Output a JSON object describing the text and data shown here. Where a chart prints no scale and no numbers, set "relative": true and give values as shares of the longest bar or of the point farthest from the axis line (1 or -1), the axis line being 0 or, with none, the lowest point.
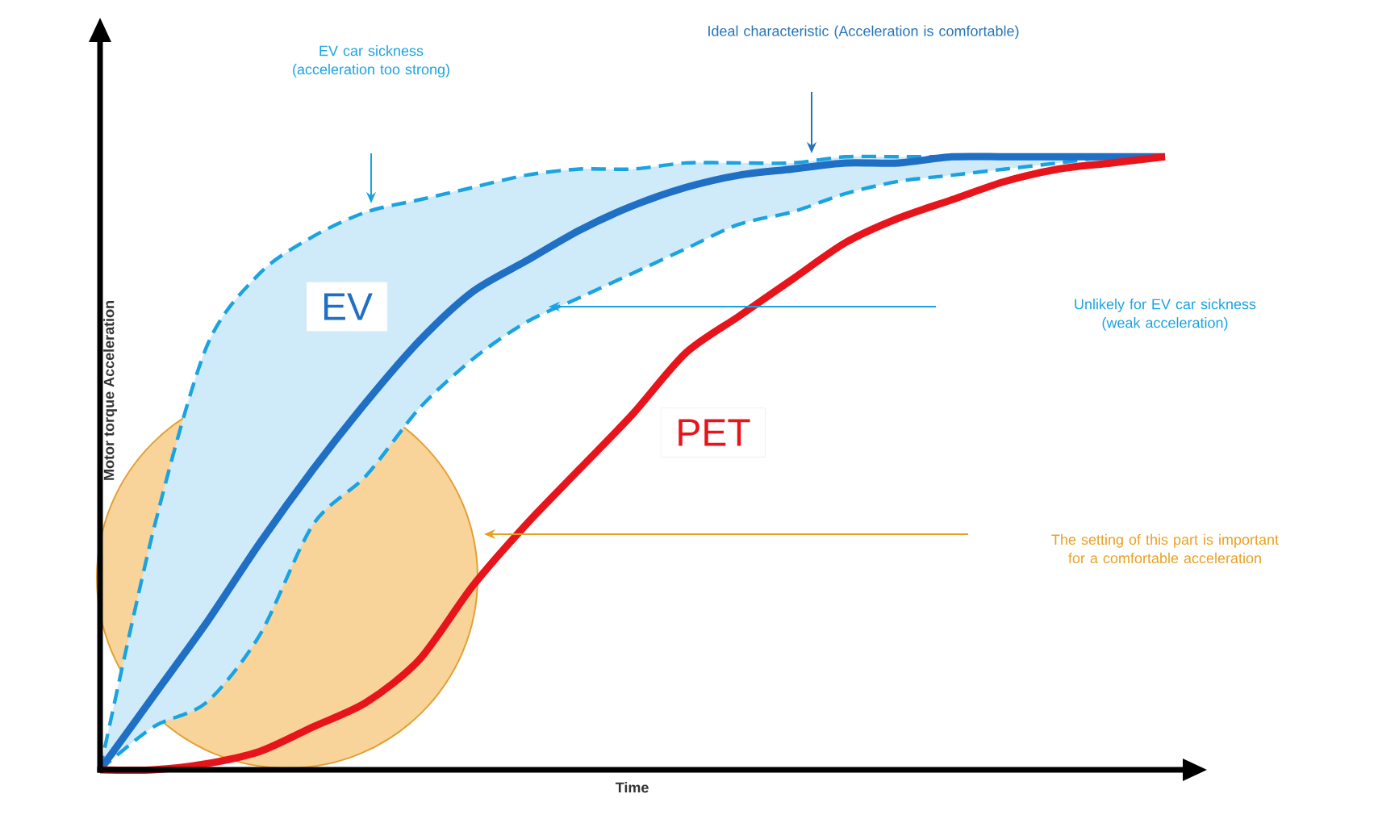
{
  "chart_data": {
    "type": "line",
    "relative": true,
    "xlabel": "Time",
    "ylabel": "Motor torque Acceleration",
    "categories": [
      null,
      null,
      null,
      null,
      null,
      null,
      null,
      null,
      null,
      null,
      null,
      null,
      null,
      null,
      null,
      null,
      null,
      null,
      null,
      null,
      null
    ],
    "series": [
      {
        "name": "EV",
        "color": "#1f6fc4",
        "values": [
          0,
          0.12,
          0.24,
          0.37,
          0.49,
          0.6,
          0.7,
          0.78,
          0.83,
          0.88,
          0.92,
          0.95,
          0.97,
          0.98,
          0.99,
          0.99,
          1,
          1,
          1,
          1,
          1
        ],
        "upper": [
          0,
          0.39,
          0.69,
          0.81,
          0.87,
          0.91,
          0.93,
          0.95,
          0.97,
          0.98,
          0.98,
          0.99,
          0.99,
          0.99,
          1,
          1,
          1,
          1,
          1,
          1,
          1
        ],
        "lower": [
          0,
          0.07,
          0.11,
          0.22,
          0.4,
          0.48,
          0.59,
          0.67,
          0.73,
          0.77,
          0.81,
          0.85,
          0.89,
          0.91,
          0.94,
          0.96,
          0.97,
          0.98,
          0.99,
          1,
          1
        ]
      },
      {
        "name": "PET",
        "color": "#e8141b",
        "values": [
          0,
          0,
          0.01,
          0.03,
          0.07,
          0.11,
          0.18,
          0.3,
          0.4,
          0.49,
          0.58,
          0.68,
          0.74,
          0.8,
          0.86,
          0.9,
          0.93,
          0.96,
          0.98,
          0.99,
          1
        ]
      }
    ],
    "annotations": [
      "EV car sickness (acceleration too strong)",
      "Ideal characteristic (Acceleration is comfortable)",
      "Unlikely for EV car sickness (weak acceleration)",
      "The setting of this part is important for a comfortable acceleration"
    ]
  }
}
